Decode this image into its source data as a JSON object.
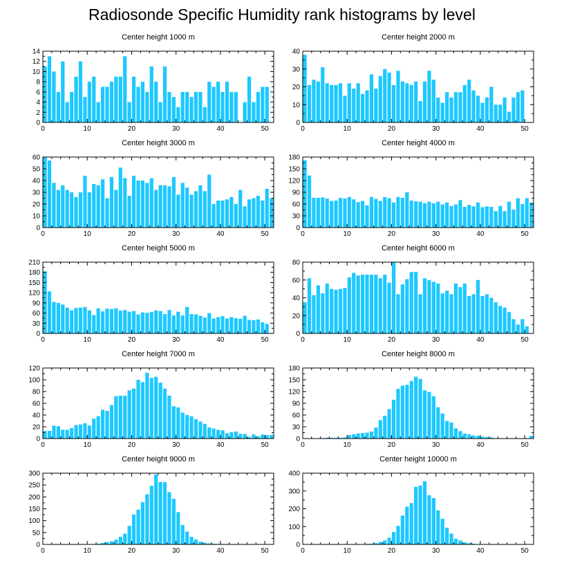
{
  "title": "Radiosonde Specific Humidity rank histograms by level",
  "bar_color": "#1EC8FF",
  "chart_data": [
    {
      "type": "bar",
      "title": "Center height 1000 m",
      "x": [
        0,
        1,
        2,
        3,
        4,
        5,
        6,
        7,
        8,
        9,
        10,
        11,
        12,
        13,
        14,
        15,
        16,
        17,
        18,
        19,
        20,
        21,
        22,
        23,
        24,
        25,
        26,
        27,
        28,
        29,
        30,
        31,
        32,
        33,
        34,
        35,
        36,
        37,
        38,
        39,
        40,
        41,
        42,
        43,
        44,
        45,
        46,
        47,
        48,
        49,
        50,
        51
      ],
      "values": [
        11,
        13,
        10,
        6,
        12,
        4,
        6,
        9,
        12,
        5,
        8,
        9,
        4,
        7,
        7,
        8,
        9,
        9,
        13,
        4,
        9,
        7,
        8,
        6,
        11,
        8,
        4,
        11,
        6,
        5,
        3,
        6,
        6,
        5,
        6,
        6,
        3,
        8,
        7,
        8,
        6,
        8,
        6,
        6,
        0,
        4,
        9,
        4,
        6,
        7,
        7,
        0
      ],
      "xlim": [
        0,
        52
      ],
      "ylim": [
        0,
        14
      ],
      "xticks": [
        0,
        10,
        20,
        30,
        40,
        50
      ],
      "yticks": [
        0,
        2,
        4,
        6,
        8,
        10,
        12,
        14
      ]
    },
    {
      "type": "bar",
      "title": "Center height 2000 m",
      "x": [
        0,
        1,
        2,
        3,
        4,
        5,
        6,
        7,
        8,
        9,
        10,
        11,
        12,
        13,
        14,
        15,
        16,
        17,
        18,
        19,
        20,
        21,
        22,
        23,
        24,
        25,
        26,
        27,
        28,
        29,
        30,
        31,
        32,
        33,
        34,
        35,
        36,
        37,
        38,
        39,
        40,
        41,
        42,
        43,
        44,
        45,
        46,
        47,
        48,
        49,
        50,
        51
      ],
      "values": [
        38,
        21,
        24,
        23,
        31,
        22,
        21,
        21,
        22,
        15,
        22,
        19,
        22,
        16,
        18,
        27,
        19,
        26,
        30,
        28,
        21,
        29,
        23,
        22,
        21,
        23,
        12,
        23,
        29,
        24,
        14,
        11,
        17,
        14,
        17,
        17,
        21,
        24,
        18,
        15,
        11,
        14,
        20,
        10,
        10,
        14,
        6,
        14,
        17,
        18,
        0,
        0
      ],
      "xlim": [
        0,
        52
      ],
      "ylim": [
        0,
        40
      ],
      "xticks": [
        0,
        10,
        20,
        30,
        40,
        50
      ],
      "yticks": [
        0,
        10,
        20,
        30,
        40
      ]
    },
    {
      "type": "bar",
      "title": "Center height 3000 m",
      "x": [
        0,
        1,
        2,
        3,
        4,
        5,
        6,
        7,
        8,
        9,
        10,
        11,
        12,
        13,
        14,
        15,
        16,
        17,
        18,
        19,
        20,
        21,
        22,
        23,
        24,
        25,
        26,
        27,
        28,
        29,
        30,
        31,
        32,
        33,
        34,
        35,
        36,
        37,
        38,
        39,
        40,
        41,
        42,
        43,
        44,
        45,
        46,
        47,
        48,
        49,
        50,
        51
      ],
      "values": [
        61,
        57,
        38,
        32,
        36,
        32,
        30,
        26,
        30,
        44,
        30,
        37,
        36,
        41,
        25,
        43,
        32,
        51,
        42,
        27,
        44,
        40,
        40,
        38,
        42,
        32,
        36,
        36,
        35,
        43,
        28,
        38,
        34,
        28,
        31,
        36,
        31,
        45,
        20,
        23,
        23,
        24,
        26,
        20,
        32,
        18,
        24,
        25,
        27,
        23,
        33,
        25
      ],
      "xlim": [
        0,
        52
      ],
      "ylim": [
        0,
        60
      ],
      "xticks": [
        0,
        10,
        20,
        30,
        40,
        50
      ],
      "yticks": [
        0,
        10,
        20,
        30,
        40,
        50,
        60
      ]
    },
    {
      "type": "bar",
      "title": "Center height 4000 m",
      "x": [
        0,
        1,
        2,
        3,
        4,
        5,
        6,
        7,
        8,
        9,
        10,
        11,
        12,
        13,
        14,
        15,
        16,
        17,
        18,
        19,
        20,
        21,
        22,
        23,
        24,
        25,
        26,
        27,
        28,
        29,
        30,
        31,
        32,
        33,
        34,
        35,
        36,
        37,
        38,
        39,
        40,
        41,
        42,
        43,
        44,
        45,
        46,
        47,
        48,
        49,
        50,
        51
      ],
      "values": [
        172,
        133,
        76,
        76,
        77,
        74,
        68,
        69,
        76,
        74,
        78,
        72,
        65,
        68,
        57,
        78,
        73,
        68,
        78,
        75,
        64,
        78,
        76,
        90,
        69,
        67,
        66,
        62,
        66,
        62,
        66,
        59,
        64,
        55,
        59,
        70,
        53,
        58,
        54,
        64,
        52,
        54,
        53,
        42,
        55,
        42,
        66,
        46,
        75,
        60,
        75,
        64
      ],
      "xlim": [
        0,
        52
      ],
      "ylim": [
        0,
        180
      ],
      "xticks": [
        0,
        10,
        20,
        30,
        40,
        50
      ],
      "yticks": [
        0,
        30,
        60,
        90,
        120,
        150,
        180
      ]
    },
    {
      "type": "bar",
      "title": "Center height 5000 m",
      "x": [
        0,
        1,
        2,
        3,
        4,
        5,
        6,
        7,
        8,
        9,
        10,
        11,
        12,
        13,
        14,
        15,
        16,
        17,
        18,
        19,
        20,
        21,
        22,
        23,
        24,
        25,
        26,
        27,
        28,
        29,
        30,
        31,
        32,
        33,
        34,
        35,
        36,
        37,
        38,
        39,
        40,
        41,
        42,
        43,
        44,
        45,
        46,
        47,
        48,
        49,
        50,
        51
      ],
      "values": [
        183,
        124,
        93,
        90,
        85,
        76,
        68,
        75,
        76,
        78,
        68,
        54,
        74,
        65,
        73,
        72,
        74,
        67,
        69,
        64,
        66,
        56,
        62,
        61,
        63,
        68,
        66,
        57,
        69,
        53,
        64,
        53,
        78,
        57,
        56,
        52,
        47,
        60,
        44,
        48,
        51,
        44,
        48,
        45,
        43,
        52,
        40,
        39,
        41,
        33,
        28,
        0
      ],
      "xlim": [
        0,
        52
      ],
      "ylim": [
        0,
        210
      ],
      "xticks": [
        0,
        10,
        20,
        30,
        40,
        50
      ],
      "yticks": [
        0,
        30,
        60,
        90,
        120,
        150,
        180,
        210
      ]
    },
    {
      "type": "bar",
      "title": "Center height 6000 m",
      "x": [
        0,
        1,
        2,
        3,
        4,
        5,
        6,
        7,
        8,
        9,
        10,
        11,
        12,
        13,
        14,
        15,
        16,
        17,
        18,
        19,
        20,
        21,
        22,
        23,
        24,
        25,
        26,
        27,
        28,
        29,
        30,
        31,
        32,
        33,
        34,
        35,
        36,
        37,
        38,
        39,
        40,
        41,
        42,
        43,
        44,
        45,
        46,
        47,
        48,
        49,
        50,
        51
      ],
      "values": [
        35,
        62,
        43,
        54,
        45,
        56,
        50,
        49,
        50,
        51,
        63,
        68,
        65,
        66,
        66,
        66,
        66,
        62,
        66,
        57,
        80,
        44,
        55,
        61,
        69,
        69,
        44,
        62,
        60,
        58,
        56,
        45,
        48,
        44,
        56,
        52,
        56,
        42,
        44,
        60,
        42,
        44,
        40,
        35,
        31,
        29,
        24,
        16,
        10,
        16,
        8,
        0
      ],
      "xlim": [
        0,
        52
      ],
      "ylim": [
        0,
        80
      ],
      "xticks": [
        0,
        10,
        20,
        30,
        40,
        50
      ],
      "yticks": [
        0,
        20,
        40,
        60,
        80
      ]
    },
    {
      "type": "bar",
      "title": "Center height 7000 m",
      "x": [
        0,
        1,
        2,
        3,
        4,
        5,
        6,
        7,
        8,
        9,
        10,
        11,
        12,
        13,
        14,
        15,
        16,
        17,
        18,
        19,
        20,
        21,
        22,
        23,
        24,
        25,
        26,
        27,
        28,
        29,
        30,
        31,
        32,
        33,
        34,
        35,
        36,
        37,
        38,
        39,
        40,
        41,
        42,
        43,
        44,
        45,
        46,
        47,
        48,
        49,
        50,
        51
      ],
      "values": [
        13,
        13,
        22,
        21,
        15,
        15,
        18,
        23,
        24,
        26,
        22,
        34,
        38,
        49,
        47,
        57,
        72,
        73,
        73,
        82,
        85,
        100,
        96,
        112,
        103,
        105,
        95,
        85,
        73,
        55,
        53,
        44,
        40,
        38,
        33,
        29,
        25,
        19,
        17,
        15,
        14,
        9,
        11,
        12,
        8,
        8,
        3,
        7,
        4,
        7,
        6,
        6
      ],
      "xlim": [
        0,
        52
      ],
      "ylim": [
        0,
        120
      ],
      "xticks": [
        0,
        10,
        20,
        30,
        40,
        50
      ],
      "yticks": [
        0,
        20,
        40,
        60,
        80,
        100,
        120
      ]
    },
    {
      "type": "bar",
      "title": "Center height 8000 m",
      "x": [
        0,
        1,
        2,
        3,
        4,
        5,
        6,
        7,
        8,
        9,
        10,
        11,
        12,
        13,
        14,
        15,
        16,
        17,
        18,
        19,
        20,
        21,
        22,
        23,
        24,
        25,
        26,
        27,
        28,
        29,
        30,
        31,
        32,
        33,
        34,
        35,
        36,
        37,
        38,
        39,
        40,
        41,
        42,
        43,
        44,
        45,
        46,
        47,
        48,
        49,
        50,
        51
      ],
      "values": [
        0,
        1,
        0,
        1,
        1,
        2,
        2,
        2,
        2,
        3,
        9,
        11,
        13,
        14,
        15,
        18,
        28,
        47,
        58,
        75,
        99,
        127,
        135,
        137,
        147,
        158,
        152,
        123,
        119,
        108,
        80,
        64,
        45,
        41,
        26,
        19,
        13,
        11,
        8,
        7,
        5,
        4,
        3,
        1,
        1,
        1,
        1,
        1,
        1,
        1,
        0,
        7
      ],
      "xlim": [
        0,
        52
      ],
      "ylim": [
        0,
        180
      ],
      "xticks": [
        0,
        10,
        20,
        30,
        40,
        50
      ],
      "yticks": [
        0,
        30,
        60,
        90,
        120,
        150,
        180
      ]
    },
    {
      "type": "bar",
      "title": "Center height 9000 m",
      "x": [
        0,
        1,
        2,
        3,
        4,
        5,
        6,
        7,
        8,
        9,
        10,
        11,
        12,
        13,
        14,
        15,
        16,
        17,
        18,
        19,
        20,
        21,
        22,
        23,
        24,
        25,
        26,
        27,
        28,
        29,
        30,
        31,
        32,
        33,
        34,
        35,
        36,
        37,
        38,
        39,
        40,
        41,
        42,
        43,
        44,
        45,
        46,
        47,
        48,
        49,
        50,
        51
      ],
      "values": [
        0,
        0,
        0,
        0,
        0,
        0,
        0,
        0,
        0,
        0,
        0,
        2,
        3,
        6,
        10,
        13,
        20,
        32,
        45,
        78,
        126,
        146,
        178,
        211,
        247,
        295,
        263,
        262,
        220,
        192,
        136,
        82,
        54,
        32,
        21,
        11,
        7,
        4,
        3,
        2,
        1,
        2,
        1,
        1,
        1,
        0,
        0,
        0,
        0,
        0,
        0,
        0
      ],
      "xlim": [
        0,
        52
      ],
      "ylim": [
        0,
        300
      ],
      "xticks": [
        0,
        10,
        20,
        30,
        40,
        50
      ],
      "yticks": [
        0,
        50,
        100,
        150,
        200,
        250,
        300
      ]
    },
    {
      "type": "bar",
      "title": "Center height 10000 m",
      "x": [
        0,
        1,
        2,
        3,
        4,
        5,
        6,
        7,
        8,
        9,
        10,
        11,
        12,
        13,
        14,
        15,
        16,
        17,
        18,
        19,
        20,
        21,
        22,
        23,
        24,
        25,
        26,
        27,
        28,
        29,
        30,
        31,
        32,
        33,
        34,
        35,
        36,
        37,
        38,
        39,
        40,
        41,
        42,
        43,
        44,
        45,
        46,
        47,
        48,
        49,
        50,
        51
      ],
      "values": [
        0,
        0,
        0,
        0,
        0,
        0,
        0,
        0,
        0,
        0,
        0,
        1,
        1,
        2,
        3,
        4,
        7,
        14,
        22,
        38,
        70,
        104,
        162,
        212,
        232,
        323,
        330,
        355,
        276,
        260,
        191,
        144,
        94,
        61,
        32,
        22,
        12,
        7,
        4,
        2,
        1,
        1,
        1,
        1,
        1,
        1,
        0,
        0,
        0,
        0,
        0,
        0
      ],
      "xlim": [
        0,
        52
      ],
      "ylim": [
        0,
        400
      ],
      "xticks": [
        0,
        10,
        20,
        30,
        40,
        50
      ],
      "yticks": [
        0,
        100,
        200,
        300,
        400
      ]
    }
  ]
}
